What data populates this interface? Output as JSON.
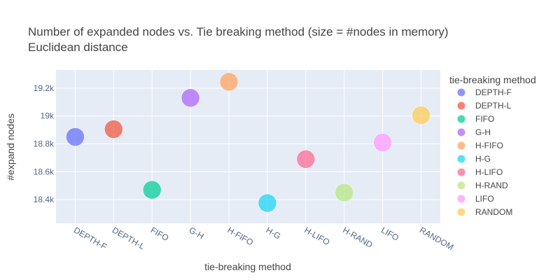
{
  "chart_data": {
    "type": "scatter",
    "title": "Number of expanded nodes vs. Tie breaking method (size = #nodes in memory)",
    "subtitle": "Euclidean distance",
    "xlabel": "tie-breaking method",
    "ylabel": "#expand nodes",
    "categories": [
      "DEPTH-F",
      "DEPTH-L",
      "FIFO",
      "G-H",
      "H-FIFO",
      "H-G",
      "H-LIFO",
      "H-RAND",
      "LIFO",
      "RANDOM"
    ],
    "ylim": [
      18230,
      19330
    ],
    "y_ticks": [
      18400,
      18600,
      18800,
      19000,
      19200
    ],
    "y_tick_labels": [
      "18.4k",
      "18.6k",
      "18.8k",
      "19k",
      "19.2k"
    ],
    "grid": true,
    "legend_title": "tie-breaking method",
    "legend_position": "right",
    "series": [
      {
        "name": "DEPTH-F",
        "x": "DEPTH-F",
        "y": 18850,
        "color": "#636efa"
      },
      {
        "name": "DEPTH-L",
        "x": "DEPTH-L",
        "y": 18905,
        "color": "#ef553b"
      },
      {
        "name": "FIFO",
        "x": "FIFO",
        "y": 18470,
        "color": "#00cc96"
      },
      {
        "name": "G-H",
        "x": "G-H",
        "y": 19130,
        "color": "#ab63fa"
      },
      {
        "name": "H-FIFO",
        "x": "H-FIFO",
        "y": 19245,
        "color": "#ffa15a"
      },
      {
        "name": "H-G",
        "x": "H-G",
        "y": 18375,
        "color": "#19d3f3"
      },
      {
        "name": "H-LIFO",
        "x": "H-LIFO",
        "y": 18690,
        "color": "#ff6692"
      },
      {
        "name": "H-RAND",
        "x": "H-RAND",
        "y": 18450,
        "color": "#b6e880"
      },
      {
        "name": "LIFO",
        "x": "LIFO",
        "y": 18810,
        "color": "#ff97ff"
      },
      {
        "name": "RANDOM",
        "x": "RANDOM",
        "y": 19005,
        "color": "#fecb52"
      }
    ]
  }
}
